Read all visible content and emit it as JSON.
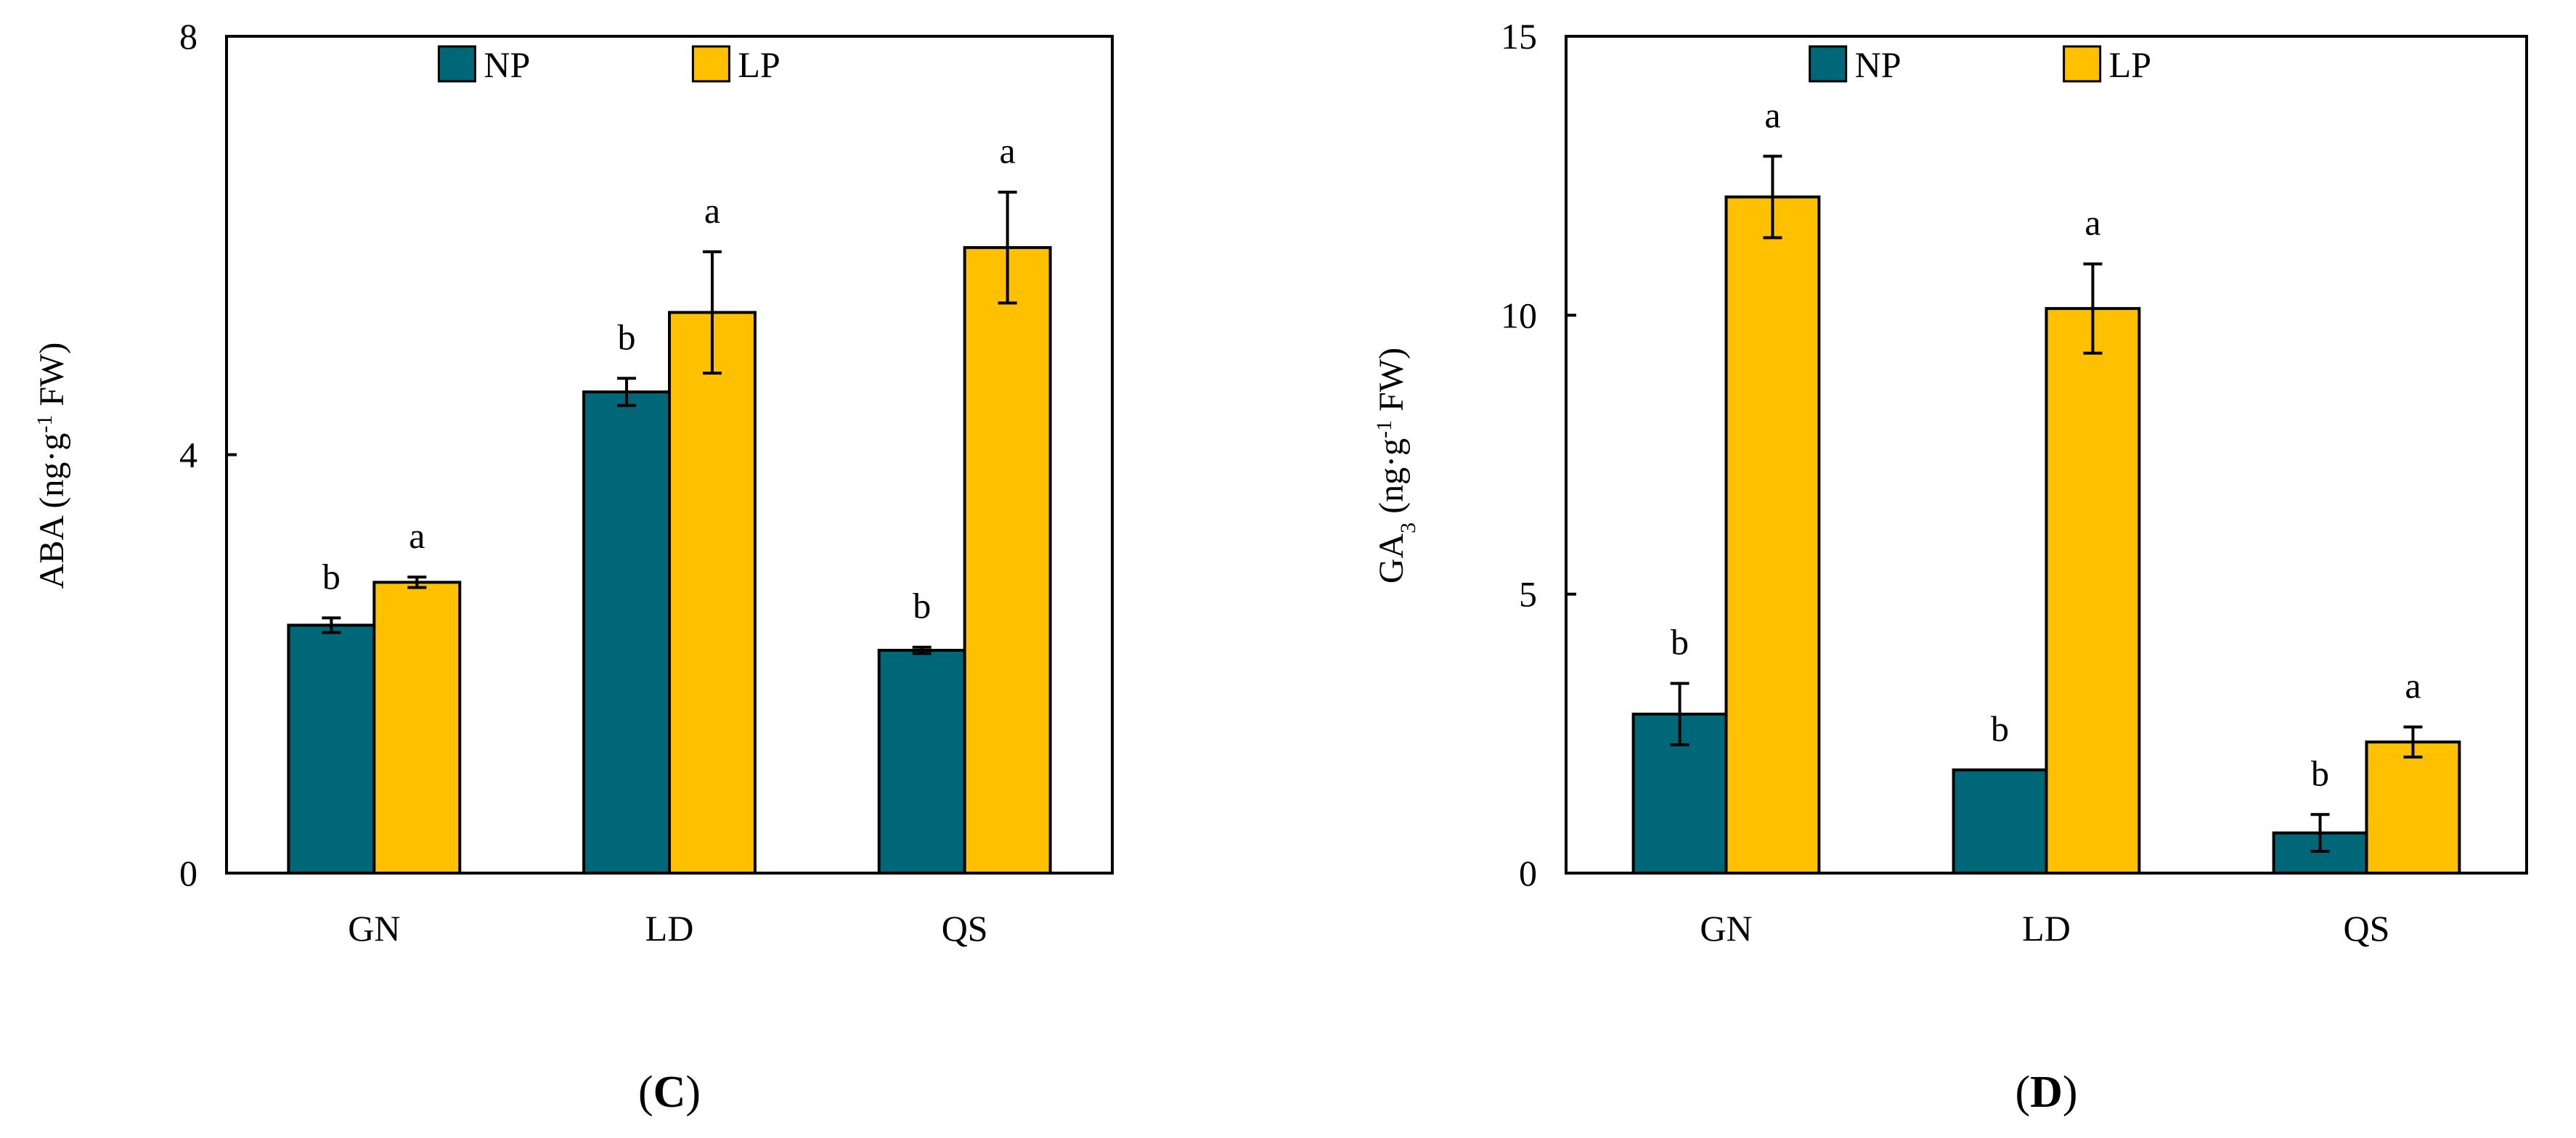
{
  "figure": {
    "colors": {
      "np": "#006778",
      "lp": "#FFC000",
      "axis": "#000000",
      "outline": "#000000"
    }
  },
  "chart_data": [
    {
      "type": "bar",
      "panel_label": "C",
      "ylabel": "ABA (ng·g-1 FW)",
      "ylabel_parts": {
        "base": "ABA (ng·g",
        "sup": "-1",
        "tail": " FW)"
      },
      "xlabel": "",
      "categories": [
        "GN",
        "LD",
        "QS"
      ],
      "ylim": [
        0,
        8
      ],
      "yticks": [
        0,
        4,
        8
      ],
      "legend": {
        "position": "top",
        "entries": [
          "NP",
          "LP"
        ]
      },
      "series": [
        {
          "name": "NP",
          "values": [
            2.37,
            4.6,
            2.13
          ],
          "errors": [
            0.07,
            0.13,
            0.03
          ],
          "labels": [
            "b",
            "b",
            "b"
          ]
        },
        {
          "name": "LP",
          "values": [
            2.78,
            5.36,
            5.98
          ],
          "errors": [
            0.05,
            0.58,
            0.53
          ],
          "labels": [
            "a",
            "a",
            "a"
          ]
        }
      ]
    },
    {
      "type": "bar",
      "panel_label": "D",
      "ylabel": "GA3 (ng·g-1 FW)",
      "ylabel_parts": {
        "base": "GA",
        "sub": "3",
        "mid": " (ng·g",
        "sup": "-1",
        "tail": " FW)"
      },
      "xlabel": "",
      "categories": [
        "GN",
        "LD",
        "QS"
      ],
      "ylim": [
        0,
        15
      ],
      "yticks": [
        0,
        5,
        10,
        15
      ],
      "legend": {
        "position": "top",
        "entries": [
          "NP",
          "LP"
        ]
      },
      "series": [
        {
          "name": "NP",
          "values": [
            2.85,
            1.85,
            0.72
          ],
          "errors": [
            0.55,
            0,
            0.33
          ],
          "labels": [
            "b",
            "b",
            "b"
          ]
        },
        {
          "name": "LP",
          "values": [
            12.12,
            10.12,
            2.35
          ],
          "errors": [
            0.73,
            0.8,
            0.27
          ],
          "labels": [
            "a",
            "a",
            "a"
          ]
        }
      ]
    }
  ]
}
